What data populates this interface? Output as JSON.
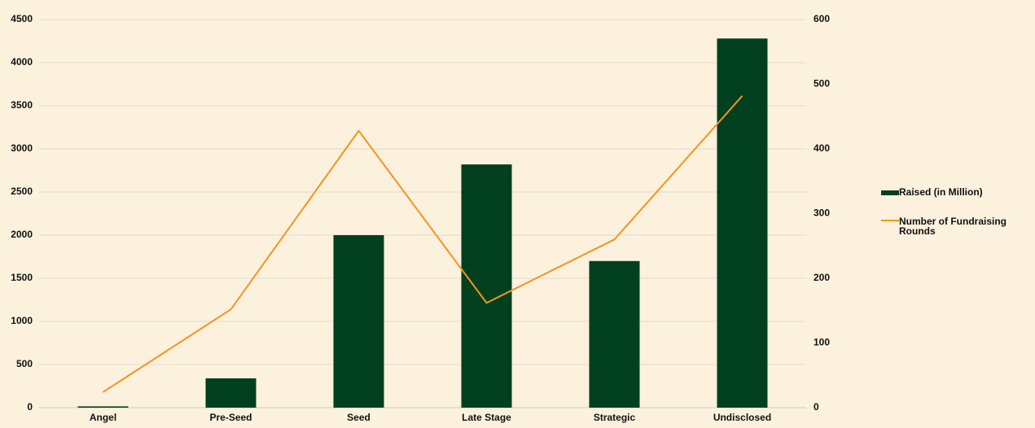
{
  "chart_data": {
    "type": "bar",
    "categories": [
      "Angel",
      "Pre-Seed",
      "Seed",
      "Late Stage",
      "Strategic",
      "Undisclosed"
    ],
    "series": [
      {
        "name": "Raised (in Million)",
        "type": "bar",
        "color": "#00401f",
        "values": [
          15,
          340,
          2000,
          2820,
          1700,
          4280
        ]
      },
      {
        "name": "Number of Fundraising Rounds",
        "type": "line",
        "axis": "y2",
        "color": "#f7931e",
        "values": [
          24,
          152,
          428,
          162,
          260,
          482
        ]
      }
    ],
    "ylim": [
      0,
      4500
    ],
    "yticks": [
      0,
      500,
      1000,
      1500,
      2000,
      2500,
      3000,
      3500,
      4000,
      4500
    ],
    "y2lim": [
      0,
      600
    ],
    "y2ticks": [
      0,
      100,
      200,
      300,
      400,
      500,
      600
    ],
    "grid": true,
    "legend": "right"
  }
}
